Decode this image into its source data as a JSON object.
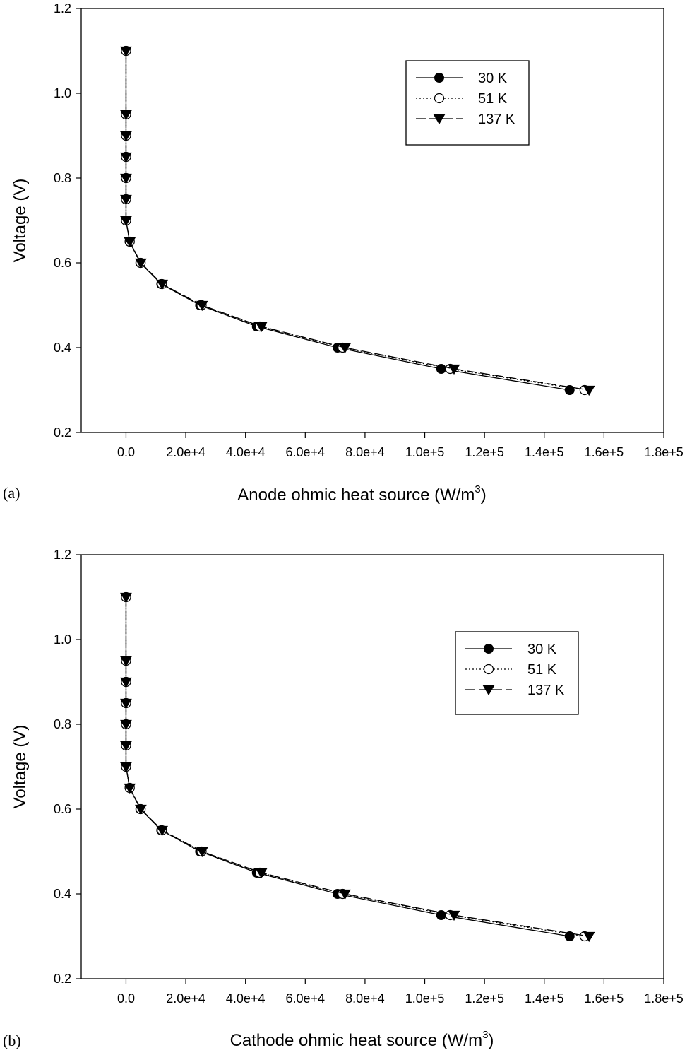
{
  "chart_data": [
    {
      "type": "line",
      "panel_label": "(a)",
      "xlabel": "Anode ohmic heat source (W/m",
      "xlabel_sup": "3",
      "xlabel_end": ")",
      "ylabel": "Voltage (V)",
      "xlim": [
        -15000,
        180000
      ],
      "ylim": [
        0.2,
        1.2
      ],
      "x_ticks": [
        0,
        20000,
        40000,
        60000,
        80000,
        100000,
        120000,
        140000,
        160000,
        180000
      ],
      "x_tick_labels": [
        "0.0",
        "2.0e+4",
        "4.0e+4",
        "6.0e+4",
        "8.0e+4",
        "1.0e+5",
        "1.2e+5",
        "1.4e+5",
        "1.6e+5",
        "1.8e+5"
      ],
      "y_ticks": [
        0.2,
        0.4,
        0.6,
        0.8,
        1.0,
        1.2
      ],
      "y_tick_labels": [
        "0.2",
        "0.4",
        "0.6",
        "0.8",
        "1.0",
        "1.2"
      ],
      "legend_position": "top-right",
      "grid": false,
      "series": [
        {
          "name": "30 K",
          "marker": "filled-circle",
          "line": "solid",
          "points": [
            [
              0,
              1.1
            ],
            [
              0,
              0.95
            ],
            [
              0,
              0.9
            ],
            [
              0,
              0.85
            ],
            [
              0,
              0.8
            ],
            [
              0,
              0.75
            ],
            [
              0,
              0.7
            ],
            [
              1200,
              0.65
            ],
            [
              4800,
              0.6
            ],
            [
              11800,
              0.55
            ],
            [
              24800,
              0.5
            ],
            [
              43800,
              0.45
            ],
            [
              70800,
              0.4
            ],
            [
              105500,
              0.35
            ],
            [
              148500,
              0.3
            ]
          ]
        },
        {
          "name": "51 K",
          "marker": "open-circle",
          "line": "dotted",
          "points": [
            [
              0,
              1.1
            ],
            [
              0,
              0.95
            ],
            [
              0,
              0.9
            ],
            [
              0,
              0.85
            ],
            [
              0,
              0.8
            ],
            [
              0,
              0.75
            ],
            [
              0,
              0.7
            ],
            [
              1250,
              0.65
            ],
            [
              4900,
              0.6
            ],
            [
              12000,
              0.55
            ],
            [
              25300,
              0.5
            ],
            [
              44800,
              0.45
            ],
            [
              72500,
              0.4
            ],
            [
              108500,
              0.35
            ],
            [
              153500,
              0.3
            ]
          ]
        },
        {
          "name": "137 K",
          "marker": "filled-triangle-down",
          "line": "dashed",
          "points": [
            [
              0,
              1.1
            ],
            [
              0,
              0.95
            ],
            [
              0,
              0.9
            ],
            [
              0,
              0.85
            ],
            [
              0,
              0.8
            ],
            [
              0,
              0.75
            ],
            [
              0,
              0.7
            ],
            [
              1250,
              0.65
            ],
            [
              4950,
              0.6
            ],
            [
              12100,
              0.55
            ],
            [
              25500,
              0.5
            ],
            [
              45300,
              0.45
            ],
            [
              73300,
              0.4
            ],
            [
              109800,
              0.35
            ],
            [
              155000,
              0.3
            ]
          ]
        }
      ]
    },
    {
      "type": "line",
      "panel_label": "(b)",
      "xlabel": "Cathode ohmic heat source (W/m",
      "xlabel_sup": "3",
      "xlabel_end": ")",
      "ylabel": "Voltage (V)",
      "xlim": [
        -15000,
        180000
      ],
      "ylim": [
        0.2,
        1.2
      ],
      "x_ticks": [
        0,
        20000,
        40000,
        60000,
        80000,
        100000,
        120000,
        140000,
        160000,
        180000
      ],
      "x_tick_labels": [
        "0.0",
        "2.0e+4",
        "4.0e+4",
        "6.0e+4",
        "8.0e+4",
        "1.0e+5",
        "1.2e+5",
        "1.4e+5",
        "1.6e+5",
        "1.8e+5"
      ],
      "y_ticks": [
        0.2,
        0.4,
        0.6,
        0.8,
        1.0,
        1.2
      ],
      "y_tick_labels": [
        "0.2",
        "0.4",
        "0.6",
        "0.8",
        "1.0",
        "1.2"
      ],
      "legend_position": "top-right",
      "grid": false,
      "series": [
        {
          "name": "30 K",
          "marker": "filled-circle",
          "line": "solid",
          "points": [
            [
              0,
              1.1
            ],
            [
              0,
              0.95
            ],
            [
              0,
              0.9
            ],
            [
              0,
              0.85
            ],
            [
              0,
              0.8
            ],
            [
              0,
              0.75
            ],
            [
              0,
              0.7
            ],
            [
              1200,
              0.65
            ],
            [
              4800,
              0.6
            ],
            [
              11800,
              0.55
            ],
            [
              24800,
              0.5
            ],
            [
              43800,
              0.45
            ],
            [
              70800,
              0.4
            ],
            [
              105500,
              0.35
            ],
            [
              148500,
              0.3
            ]
          ]
        },
        {
          "name": "51 K",
          "marker": "open-circle",
          "line": "dotted",
          "points": [
            [
              0,
              1.1
            ],
            [
              0,
              0.95
            ],
            [
              0,
              0.9
            ],
            [
              0,
              0.85
            ],
            [
              0,
              0.8
            ],
            [
              0,
              0.75
            ],
            [
              0,
              0.7
            ],
            [
              1250,
              0.65
            ],
            [
              4900,
              0.6
            ],
            [
              12000,
              0.55
            ],
            [
              25300,
              0.5
            ],
            [
              44800,
              0.45
            ],
            [
              72500,
              0.4
            ],
            [
              108500,
              0.35
            ],
            [
              153500,
              0.3
            ]
          ]
        },
        {
          "name": "137 K",
          "marker": "filled-triangle-down",
          "line": "dashed",
          "points": [
            [
              0,
              1.1
            ],
            [
              0,
              0.95
            ],
            [
              0,
              0.9
            ],
            [
              0,
              0.85
            ],
            [
              0,
              0.8
            ],
            [
              0,
              0.75
            ],
            [
              0,
              0.7
            ],
            [
              1250,
              0.65
            ],
            [
              4950,
              0.6
            ],
            [
              12100,
              0.55
            ],
            [
              25500,
              0.5
            ],
            [
              45300,
              0.45
            ],
            [
              73300,
              0.4
            ],
            [
              109800,
              0.35
            ],
            [
              155000,
              0.3
            ]
          ]
        }
      ]
    }
  ]
}
